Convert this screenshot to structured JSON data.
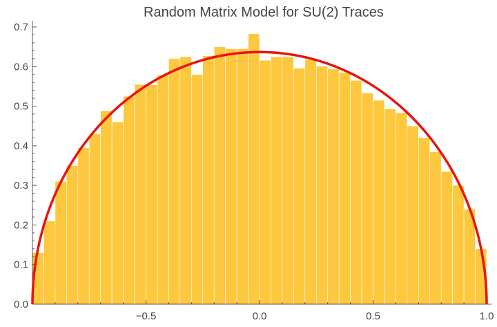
{
  "chart_data": {
    "type": "bar",
    "title": "Random Matrix Model for SU(2) Traces",
    "xlabel": "",
    "ylabel": "",
    "xlim": [
      -1.0,
      1.0
    ],
    "ylim": [
      0.0,
      0.72
    ],
    "x_ticks": [
      -0.5,
      0.0,
      0.5,
      1.0
    ],
    "x_tick_labels": [
      "−0.5",
      "0.0",
      "0.5",
      "1.0"
    ],
    "y_ticks": [
      0.0,
      0.1,
      0.2,
      0.3,
      0.4,
      0.5,
      0.6,
      0.7
    ],
    "y_tick_labels": [
      "0.0",
      "0.1",
      "0.2",
      "0.3",
      "0.4",
      "0.5",
      "0.6",
      "0.7"
    ],
    "grid": false,
    "bin_width": 0.05,
    "bin_edges_start": -1.0,
    "values": [
      0.13,
      0.21,
      0.31,
      0.35,
      0.395,
      0.43,
      0.488,
      0.46,
      0.525,
      0.555,
      0.554,
      0.579,
      0.62,
      0.625,
      0.58,
      0.627,
      0.65,
      0.645,
      0.645,
      0.683,
      0.616,
      0.625,
      0.625,
      0.596,
      0.618,
      0.601,
      0.594,
      0.585,
      0.565,
      0.533,
      0.515,
      0.493,
      0.483,
      0.45,
      0.42,
      0.385,
      0.335,
      0.3,
      0.24,
      0.14
    ],
    "series": [
      {
        "type": "histogram",
        "color": "#FDC83D"
      },
      {
        "type": "line",
        "function": "(2/pi)*sqrt(1-x^2)",
        "color": "#E8140F"
      }
    ]
  }
}
